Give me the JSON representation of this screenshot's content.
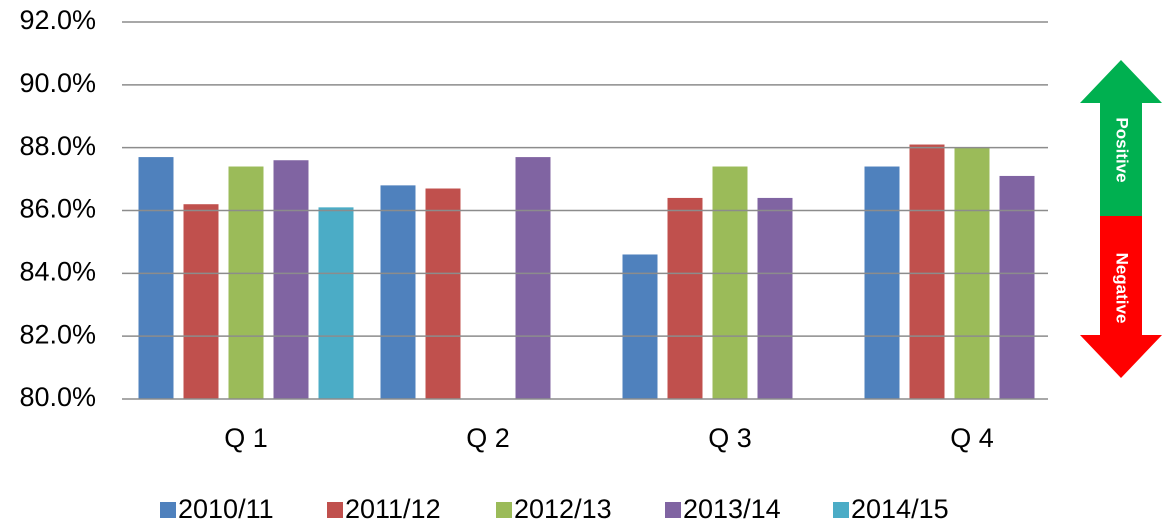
{
  "chart_data": {
    "type": "bar",
    "categories": [
      "Q 1",
      "Q 2",
      "Q 3",
      "Q 4"
    ],
    "series": [
      {
        "name": "2010/11",
        "color": "#4f81bd",
        "values": [
          87.7,
          86.8,
          84.6,
          87.4
        ]
      },
      {
        "name": "2011/12",
        "color": "#c0504d",
        "values": [
          86.2,
          86.7,
          86.4,
          88.1
        ]
      },
      {
        "name": "2012/13",
        "color": "#9bbb59",
        "values": [
          87.4,
          null,
          87.4,
          88.0
        ]
      },
      {
        "name": "2013/14",
        "color": "#8064a2",
        "values": [
          87.6,
          87.7,
          86.4,
          87.1
        ]
      },
      {
        "name": "2014/15",
        "color": "#4bacc6",
        "values": [
          86.1,
          null,
          null,
          null
        ]
      }
    ],
    "ylim": [
      80,
      92
    ],
    "yticks": [
      {
        "value": 80,
        "label": "80.0%"
      },
      {
        "value": 82,
        "label": "82.0%"
      },
      {
        "value": 84,
        "label": "84.0%"
      },
      {
        "value": 86,
        "label": "86.0%"
      },
      {
        "value": 88,
        "label": "88.0%"
      },
      {
        "value": 90,
        "label": "90.0%"
      },
      {
        "value": 92,
        "label": "92.0%"
      }
    ],
    "grid": true,
    "legend": "bottom",
    "annotations": [
      "Positive",
      "Negative"
    ]
  }
}
